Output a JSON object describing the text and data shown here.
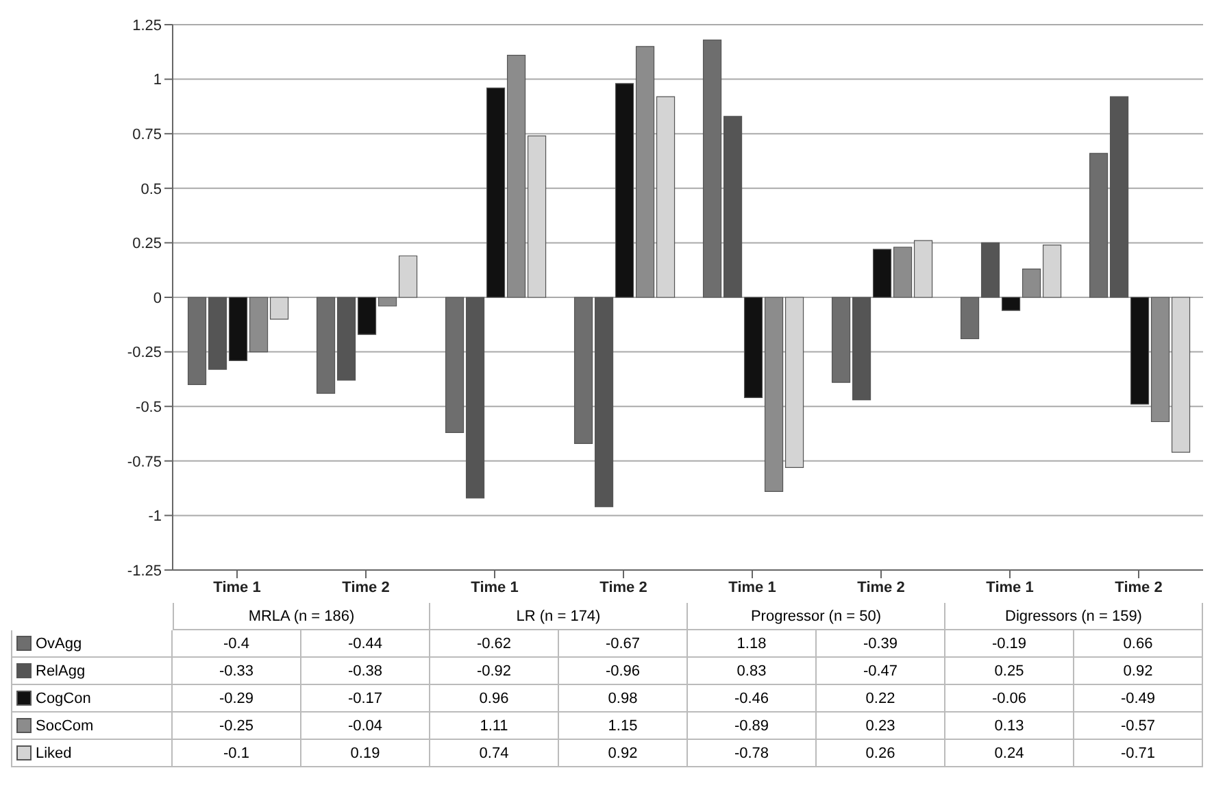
{
  "chart_data": {
    "type": "bar",
    "categories": [
      "Time 1",
      "Time 2",
      "Time 1",
      "Time 2",
      "Time 1",
      "Time 2",
      "Time 1",
      "Time 2"
    ],
    "annotations": [
      "MRLA (n = 186)",
      "LR (n = 174)",
      "Progressor (n = 50)",
      "Digressors (n = 159)"
    ],
    "series": [
      {
        "name": "OvAgg",
        "color": "#6e6e6e",
        "values": [
          -0.4,
          -0.44,
          -0.62,
          -0.67,
          1.18,
          -0.39,
          -0.19,
          0.66
        ]
      },
      {
        "name": "RelAgg",
        "color": "#555555",
        "values": [
          -0.33,
          -0.38,
          -0.92,
          -0.96,
          0.83,
          -0.47,
          0.25,
          0.92
        ]
      },
      {
        "name": "CogCon",
        "color": "#111111",
        "values": [
          -0.29,
          -0.17,
          0.96,
          0.98,
          -0.46,
          0.22,
          -0.06,
          -0.49
        ]
      },
      {
        "name": "SocCom",
        "color": "#8c8c8c",
        "values": [
          -0.25,
          -0.04,
          1.11,
          1.15,
          -0.89,
          0.23,
          0.13,
          -0.57
        ]
      },
      {
        "name": "Liked",
        "color": "#d4d4d4",
        "values": [
          -0.1,
          0.19,
          0.74,
          0.92,
          -0.78,
          0.26,
          0.24,
          -0.71
        ]
      }
    ],
    "ylim": [
      -1.25,
      1.25
    ],
    "yticks": [
      -1.25,
      -1,
      -0.75,
      -0.5,
      -0.25,
      0,
      0.25,
      0.5,
      0.75,
      1,
      1.25
    ],
    "grid": "y",
    "legend": "bottom",
    "data_labels": true
  }
}
